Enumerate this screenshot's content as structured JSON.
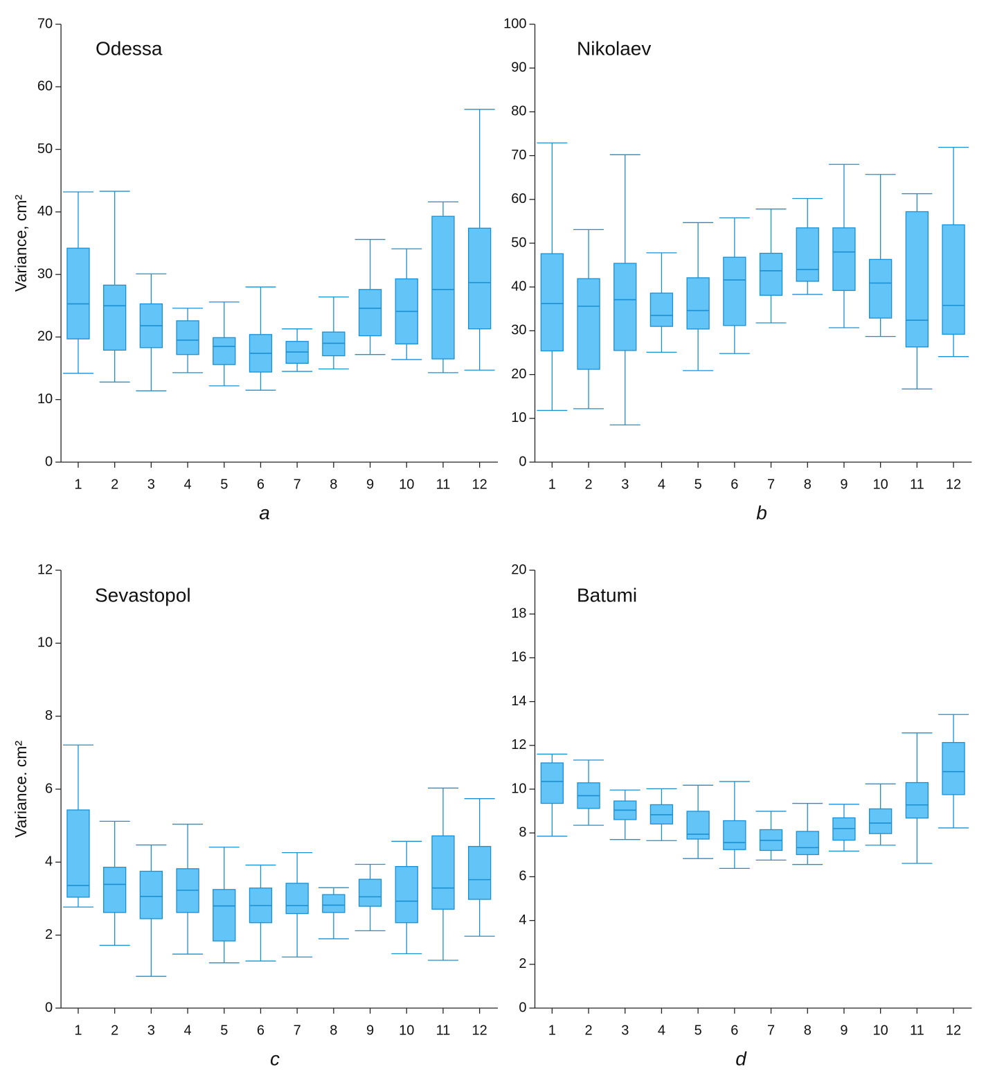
{
  "chart_data": [
    {
      "type": "box",
      "title": "Odessa",
      "label": "a",
      "y_label": "Variance, cm²",
      "categories": [
        "1",
        "2",
        "3",
        "4",
        "5",
        "6",
        "7",
        "8",
        "9",
        "10",
        "11",
        "12"
      ],
      "min": [
        14.2,
        12.8,
        11.4,
        14.3,
        12.2,
        11.5,
        14.5,
        14.9,
        17.2,
        16.4,
        14.3,
        14.7
      ],
      "q1": [
        19.7,
        17.9,
        18.3,
        17.2,
        15.6,
        14.4,
        15.8,
        17.0,
        20.2,
        18.9,
        16.5,
        21.3
      ],
      "median": [
        25.3,
        25.0,
        21.8,
        19.5,
        18.5,
        17.4,
        17.6,
        19.0,
        24.6,
        24.1,
        27.6,
        28.7
      ],
      "q3": [
        34.2,
        28.3,
        25.3,
        22.6,
        19.9,
        20.4,
        19.3,
        20.8,
        27.6,
        29.3,
        39.3,
        37.4
      ],
      "max": [
        43.2,
        43.3,
        30.1,
        24.6,
        25.6,
        28.0,
        21.3,
        26.4,
        35.6,
        34.1,
        41.6,
        56.4
      ],
      "color": "#62c4f7",
      "edge_color": "#1b8fd2",
      "ylim": [
        0,
        70
      ],
      "yticks": [
        0,
        10,
        20,
        30,
        40,
        50,
        60,
        70
      ]
    },
    {
      "type": "box",
      "title": "Nikolaev",
      "label": "b",
      "categories": [
        "1",
        "2",
        "3",
        "4",
        "5",
        "6",
        "7",
        "8",
        "9",
        "10",
        "11",
        "12"
      ],
      "min": [
        11.8,
        12.2,
        8.5,
        25.1,
        20.9,
        24.8,
        31.8,
        38.3,
        30.7,
        28.7,
        16.7,
        24.1
      ],
      "q1": [
        25.4,
        21.2,
        25.5,
        31.0,
        30.4,
        31.2,
        38.1,
        41.3,
        39.2,
        32.9,
        26.3,
        29.2
      ],
      "median": [
        36.2,
        35.6,
        37.1,
        33.5,
        34.6,
        41.6,
        43.7,
        44.0,
        48.0,
        40.9,
        32.4,
        35.8
      ],
      "q3": [
        47.6,
        41.9,
        45.4,
        38.6,
        42.1,
        46.8,
        47.7,
        53.5,
        53.5,
        46.3,
        57.2,
        54.2
      ],
      "max": [
        72.9,
        53.1,
        70.2,
        47.8,
        54.7,
        55.8,
        57.8,
        60.2,
        68.0,
        65.7,
        61.3,
        71.9
      ],
      "color": "#62c4f7",
      "edge_color": "#1b8fd2",
      "ylim": [
        0,
        100
      ],
      "yticks": [
        0,
        10,
        20,
        30,
        40,
        50,
        60,
        70,
        80,
        90,
        100
      ]
    },
    {
      "type": "box",
      "title": "Sevastopol",
      "label": "c",
      "y_label": "Variance. cm²",
      "categories": [
        "1",
        "2",
        "3",
        "4",
        "5",
        "6",
        "7",
        "8",
        "9",
        "10",
        "11",
        "12"
      ],
      "min": [
        2.77,
        1.72,
        0.87,
        1.48,
        1.24,
        1.29,
        1.4,
        1.9,
        2.12,
        1.49,
        1.31,
        1.97
      ],
      "q1": [
        3.04,
        2.62,
        2.45,
        2.62,
        1.84,
        2.34,
        2.59,
        2.62,
        2.79,
        2.34,
        2.71,
        2.98
      ],
      "median": [
        3.36,
        3.39,
        3.06,
        3.23,
        2.8,
        2.81,
        2.81,
        2.82,
        3.05,
        2.93,
        3.29,
        3.52
      ],
      "q3": [
        5.43,
        3.86,
        3.75,
        3.82,
        3.25,
        3.29,
        3.42,
        3.11,
        3.53,
        3.88,
        4.72,
        4.43
      ],
      "max": [
        7.21,
        5.12,
        4.47,
        5.04,
        4.41,
        3.92,
        4.26,
        3.3,
        3.94,
        4.57,
        6.03,
        5.74
      ],
      "color": "#62c4f7",
      "edge_color": "#1b8fd2",
      "ylim": [
        0,
        12
      ],
      "yticks": [
        0,
        2,
        4,
        6,
        8,
        10,
        12
      ]
    },
    {
      "type": "box",
      "title": "Batumi",
      "label": "d",
      "categories": [
        "1",
        "2",
        "3",
        "4",
        "5",
        "6",
        "7",
        "8",
        "9",
        "10",
        "11",
        "12"
      ],
      "min": [
        7.85,
        8.35,
        7.7,
        7.65,
        6.83,
        6.38,
        6.76,
        6.56,
        7.17,
        7.44,
        6.61,
        8.23
      ],
      "q1": [
        9.35,
        9.12,
        8.61,
        8.41,
        7.72,
        7.24,
        7.2,
        7.01,
        7.67,
        7.97,
        8.68,
        9.75
      ],
      "median": [
        10.35,
        9.7,
        9.04,
        8.83,
        7.94,
        7.56,
        7.66,
        7.33,
        8.2,
        8.45,
        9.28,
        10.8
      ],
      "q3": [
        11.2,
        10.29,
        9.46,
        9.29,
        8.99,
        8.56,
        8.15,
        8.07,
        8.69,
        9.1,
        10.3,
        12.13
      ],
      "max": [
        11.6,
        11.33,
        9.96,
        10.02,
        10.18,
        10.35,
        8.99,
        9.35,
        9.31,
        10.24,
        12.57,
        13.41
      ],
      "color": "#62c4f7",
      "edge_color": "#1b8fd2",
      "ylim": [
        0,
        20
      ],
      "yticks": [
        0,
        2,
        4,
        6,
        8,
        10,
        12,
        14,
        16,
        18,
        20
      ]
    }
  ]
}
